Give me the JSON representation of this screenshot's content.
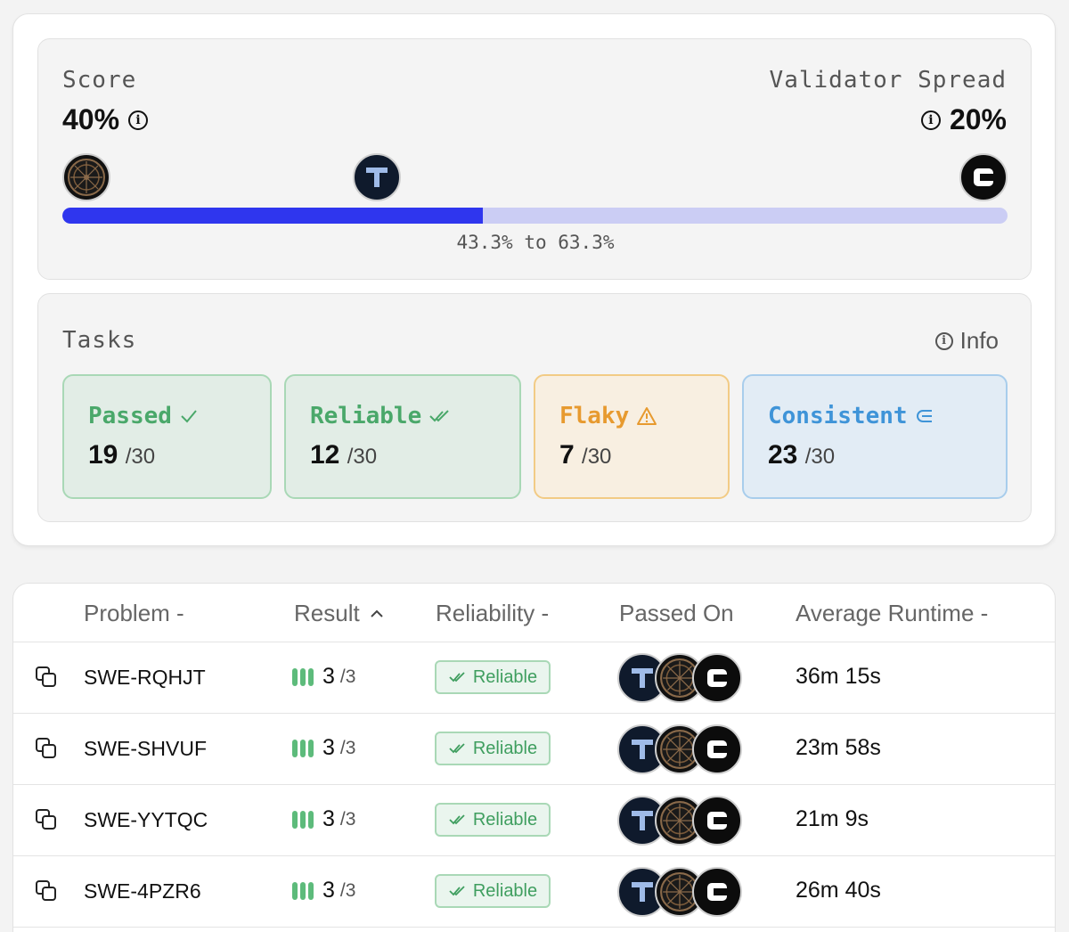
{
  "score": {
    "label": "Score",
    "value": "40%",
    "spread_label": "Validator Spread",
    "spread_value": "20%",
    "range_text": "43.3% to 63.3%",
    "bar_fill_fraction": 0.445
  },
  "tasks": {
    "label": "Tasks",
    "info_label": "Info",
    "stats": [
      {
        "title": "Passed",
        "value": "19",
        "denom": "/30",
        "icon": "check-icon"
      },
      {
        "title": "Reliable",
        "value": "12",
        "denom": "/30",
        "icon": "double-check-icon"
      },
      {
        "title": "Flaky",
        "value": "7",
        "denom": "/30",
        "icon": "warning-icon"
      },
      {
        "title": "Consistent",
        "value": "23",
        "denom": "/30",
        "icon": "consistent-icon"
      }
    ]
  },
  "table": {
    "headers": {
      "problem": "Problem -",
      "result": "Result",
      "reliability": "Reliability -",
      "passed_on": "Passed On",
      "runtime": "Average Runtime -"
    },
    "rows": [
      {
        "problem": "SWE-RQHJT",
        "result": "3",
        "result_denom": "/3",
        "reliability": "Reliable",
        "runtime": "36m 15s"
      },
      {
        "problem": "SWE-SHVUF",
        "result": "3",
        "result_denom": "/3",
        "reliability": "Reliable",
        "runtime": "23m 58s"
      },
      {
        "problem": "SWE-YYTQC",
        "result": "3",
        "result_denom": "/3",
        "reliability": "Reliable",
        "runtime": "21m 9s"
      },
      {
        "problem": "SWE-4PZR6",
        "result": "3",
        "result_denom": "/3",
        "reliability": "Reliable",
        "runtime": "26m 40s"
      }
    ]
  },
  "colors": {
    "accent": "#2f36ee",
    "success": "#4aa86a",
    "warning": "#e79a2f",
    "info": "#3f94d8"
  }
}
